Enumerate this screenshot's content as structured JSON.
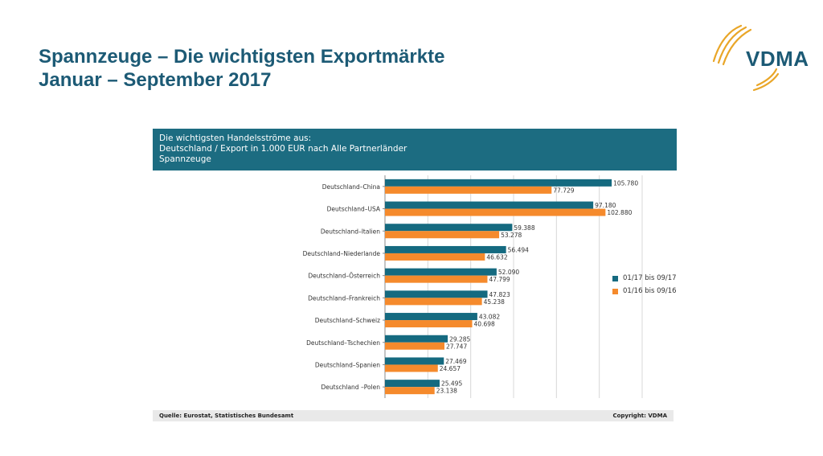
{
  "slide": {
    "title_line1": "Spannzeuge – Die wichtigsten Exportmärkte",
    "title_line2": "Januar – September 2017"
  },
  "logo": {
    "text": "VDMA",
    "icon": "vdma-swoosh-logo",
    "accent_color": "#e9a628"
  },
  "header": {
    "line1": "Die wichtigsten Handelsströme aus:",
    "line2": "Deutschland / Export in 1.000 EUR nach Alle Partnerländer",
    "line3": "Spannzeuge",
    "background_color": "#1c6c81"
  },
  "footer": {
    "source": "Quelle: Eurostat, Statistisches Bundesamt",
    "copyright": "Copyright: VDMA"
  },
  "chart_data": {
    "type": "bar",
    "orientation": "horizontal",
    "categories": [
      "Deutschland–China",
      "Deutschland–USA",
      "Deutschland–Italien",
      "Deutschland–Niederlande",
      "Deutschland–Österreich",
      "Deutschland–Frankreich",
      "Deutschland–Schweiz",
      "Deutschland–Tschechien",
      "Deutschland–Spanien",
      "Deutschland –Polen"
    ],
    "series": [
      {
        "name": "01/17 bis 09/17",
        "color": "#156a80",
        "values": [
          105780,
          97180,
          59388,
          56494,
          52090,
          47823,
          43082,
          29285,
          27469,
          25495
        ],
        "labels": [
          "105.780",
          "97.180",
          "59.388",
          "56.494",
          "52.090",
          "47.823",
          "43.082",
          "29.285",
          "27.469",
          "25.495"
        ]
      },
      {
        "name": "01/16 bis 09/16",
        "color": "#f58a2c",
        "values": [
          77729,
          102880,
          53278,
          46632,
          47799,
          45238,
          40698,
          27747,
          24657,
          23138
        ],
        "labels": [
          "77.729",
          "102.880",
          "53.278",
          "46.632",
          "47.799",
          "45.238",
          "40.698",
          "27.747",
          "24.657",
          "23.138"
        ]
      }
    ],
    "xlim": [
      0,
      120000
    ],
    "grid": true,
    "legend_position": "right"
  }
}
